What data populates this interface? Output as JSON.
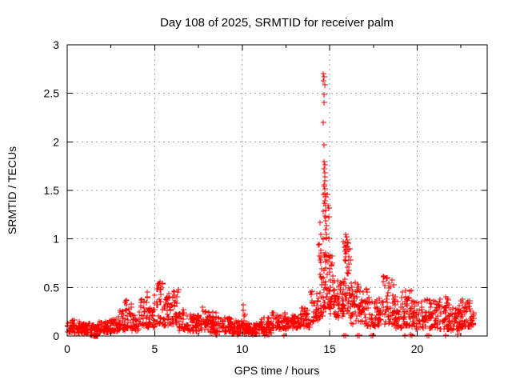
{
  "figure": {
    "title": "Day 108 of 2025, SRMTID for receiver palm",
    "xlabel": "GPS time / hours",
    "ylabel": "SRMTID / TECUs"
  },
  "chart_data": {
    "type": "scatter",
    "title": "Day 108 of 2025, SRMTID for receiver palm",
    "xlabel": "GPS time / hours",
    "ylabel": "SRMTID / TECUs",
    "xlim": [
      0,
      24
    ],
    "ylim": [
      0,
      3
    ],
    "xticks": [
      0,
      5,
      10,
      15,
      20
    ],
    "xticks_minor": [
      2.5,
      7.5,
      12.5,
      17.5,
      22.5
    ],
    "yticks": [
      "0",
      "0.5",
      "1",
      "1.5",
      "2",
      "2.5",
      "3"
    ],
    "ytick_values": [
      0,
      0.5,
      1,
      1.5,
      2,
      2.5,
      3
    ],
    "grid": true,
    "grid_color": "#9f9f9f",
    "border_color": "#000000",
    "marker": "plus",
    "marker_color": "#ff0000",
    "series_name": "SRMTID",
    "band_segment_format": "[hour_start, hour_end, point_count, y_min_TECU, y_max_TECU]",
    "band_segments": [
      [
        0.0,
        0.4,
        30,
        0.04,
        0.17
      ],
      [
        0.4,
        0.9,
        35,
        0.03,
        0.15
      ],
      [
        0.9,
        1.3,
        28,
        0.03,
        0.14
      ],
      [
        1.3,
        1.8,
        35,
        0.0,
        0.12
      ],
      [
        1.8,
        2.4,
        40,
        0.04,
        0.15
      ],
      [
        2.4,
        2.9,
        35,
        0.05,
        0.18
      ],
      [
        2.9,
        3.3,
        30,
        0.06,
        0.27
      ],
      [
        3.3,
        3.7,
        30,
        0.08,
        0.37
      ],
      [
        3.7,
        4.1,
        30,
        0.06,
        0.22
      ],
      [
        4.1,
        4.6,
        35,
        0.1,
        0.46
      ],
      [
        4.6,
        5.0,
        30,
        0.08,
        0.33
      ],
      [
        5.0,
        5.45,
        35,
        0.12,
        0.57
      ],
      [
        5.45,
        5.8,
        28,
        0.1,
        0.42
      ],
      [
        5.8,
        6.35,
        40,
        0.12,
        0.52
      ],
      [
        6.35,
        6.9,
        38,
        0.06,
        0.28
      ],
      [
        6.9,
        7.6,
        45,
        0.05,
        0.22
      ],
      [
        7.6,
        8.1,
        35,
        0.06,
        0.3
      ],
      [
        8.1,
        8.6,
        35,
        0.03,
        0.25
      ],
      [
        8.6,
        9.4,
        50,
        0.04,
        0.2
      ],
      [
        9.4,
        9.9,
        35,
        0.02,
        0.16
      ],
      [
        9.9,
        10.15,
        18,
        0.04,
        0.33
      ],
      [
        10.15,
        11.0,
        55,
        0.02,
        0.14
      ],
      [
        11.0,
        11.7,
        45,
        0.03,
        0.19
      ],
      [
        11.7,
        12.5,
        50,
        0.07,
        0.26
      ],
      [
        12.5,
        13.3,
        50,
        0.08,
        0.22
      ],
      [
        13.3,
        13.9,
        40,
        0.09,
        0.29
      ],
      [
        13.9,
        14.35,
        32,
        0.12,
        0.46
      ],
      [
        14.35,
        14.6,
        25,
        0.18,
        0.95
      ],
      [
        14.6,
        14.95,
        45,
        0.25,
        1.55
      ],
      [
        14.95,
        15.35,
        40,
        0.22,
        0.85
      ],
      [
        15.35,
        15.75,
        35,
        0.18,
        0.6
      ],
      [
        15.75,
        16.2,
        45,
        0.22,
        1.02
      ],
      [
        16.2,
        16.75,
        40,
        0.12,
        0.55
      ],
      [
        16.75,
        17.35,
        40,
        0.1,
        0.5
      ],
      [
        17.35,
        18.0,
        45,
        0.1,
        0.42
      ],
      [
        18.0,
        18.65,
        45,
        0.12,
        0.62
      ],
      [
        18.65,
        19.1,
        35,
        0.08,
        0.42
      ],
      [
        19.1,
        19.65,
        38,
        0.1,
        0.52
      ],
      [
        19.65,
        20.4,
        50,
        0.07,
        0.36
      ],
      [
        20.4,
        21.2,
        55,
        0.08,
        0.38
      ],
      [
        21.2,
        21.85,
        45,
        0.07,
        0.42
      ],
      [
        21.85,
        22.45,
        42,
        0.06,
        0.32
      ],
      [
        22.45,
        23.0,
        40,
        0.09,
        0.38
      ],
      [
        23.0,
        23.25,
        18,
        0.1,
        0.3
      ]
    ],
    "peak_points": [
      [
        14.64,
        2.7
      ],
      [
        14.67,
        2.67
      ],
      [
        14.65,
        2.63
      ],
      [
        14.7,
        2.59
      ],
      [
        14.66,
        2.49
      ],
      [
        14.68,
        2.41
      ],
      [
        14.63,
        2.2
      ],
      [
        14.69,
        1.97
      ],
      [
        14.66,
        1.8
      ],
      [
        14.71,
        1.76
      ],
      [
        14.68,
        1.72
      ],
      [
        14.73,
        1.68
      ],
      [
        14.7,
        1.64
      ],
      [
        14.72,
        1.6
      ],
      [
        14.67,
        1.56
      ],
      [
        14.74,
        1.52
      ],
      [
        14.71,
        1.47
      ],
      [
        14.76,
        1.43
      ],
      [
        14.72,
        1.39
      ],
      [
        14.75,
        1.34
      ],
      [
        14.78,
        1.29
      ],
      [
        14.74,
        1.24
      ],
      [
        14.77,
        1.19
      ],
      [
        14.8,
        1.14
      ],
      [
        14.76,
        1.1
      ],
      [
        14.82,
        1.05
      ],
      [
        14.79,
        1.01
      ],
      [
        14.45,
        1.17
      ],
      [
        14.48,
        1.05
      ],
      [
        14.42,
        0.95
      ],
      [
        14.5,
        0.88
      ],
      [
        15.93,
        1.05
      ],
      [
        15.97,
        1.02
      ],
      [
        16.0,
        0.99
      ],
      [
        16.03,
        0.96
      ],
      [
        15.95,
        0.92
      ],
      [
        16.05,
        0.89
      ],
      [
        15.9,
        0.85
      ],
      [
        16.07,
        0.82
      ],
      [
        15.88,
        0.78
      ],
      [
        16.1,
        0.74
      ]
    ],
    "near_zero_hours": [
      1.42,
      1.5,
      1.58,
      1.66,
      8.48,
      8.55,
      11.28,
      11.42,
      11.5,
      12.38,
      15.82,
      15.9,
      16.6,
      16.68,
      17.38,
      17.48,
      19.28,
      19.6,
      19.72,
      20.55,
      20.68,
      21.6,
      22.32
    ]
  }
}
